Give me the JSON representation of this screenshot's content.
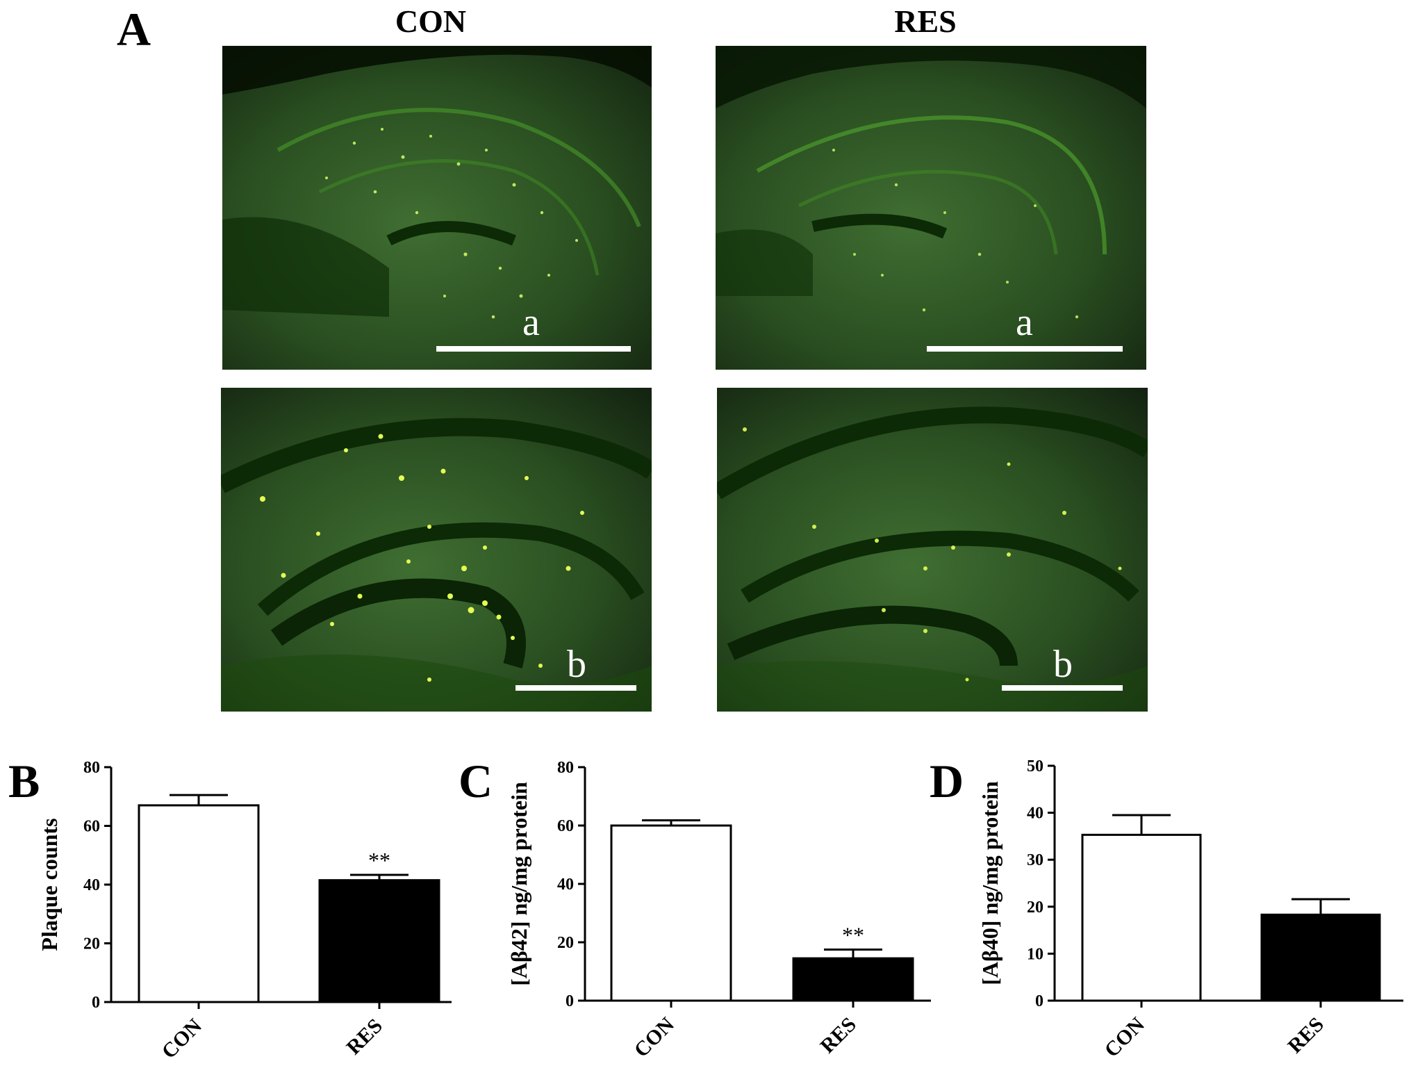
{
  "panel_a": {
    "letter": "A",
    "col_titles": [
      "CON",
      "RES"
    ],
    "images": [
      {
        "group": "CON",
        "label": "a"
      },
      {
        "group": "RES",
        "label": "a"
      },
      {
        "group": "CON",
        "label": "b"
      },
      {
        "group": "RES",
        "label": "b"
      }
    ]
  },
  "chart_data": [
    {
      "panel": "B",
      "type": "bar",
      "categories": [
        "CON",
        "RES"
      ],
      "values": [
        67,
        41.5
      ],
      "errors": [
        3.5,
        1.8
      ],
      "bar_colors": [
        "#ffffff",
        "#000000"
      ],
      "annotations": [
        "",
        "**"
      ],
      "ylabel": "Plaque counts",
      "ylim": [
        0,
        80
      ],
      "yticks": [
        0,
        20,
        40,
        60,
        80
      ]
    },
    {
      "panel": "C",
      "type": "bar",
      "categories": [
        "CON",
        "RES"
      ],
      "values": [
        60,
        14.5
      ],
      "errors": [
        1.8,
        3
      ],
      "bar_colors": [
        "#ffffff",
        "#000000"
      ],
      "annotations": [
        "",
        "**"
      ],
      "ylabel": "[Aβ42] ng/mg protein",
      "ylim": [
        0,
        80
      ],
      "yticks": [
        0,
        20,
        40,
        60,
        80
      ]
    },
    {
      "panel": "D",
      "type": "bar",
      "categories": [
        "CON",
        "RES"
      ],
      "values": [
        35.3,
        18.3
      ],
      "errors": [
        4.2,
        3.3
      ],
      "bar_colors": [
        "#ffffff",
        "#000000"
      ],
      "annotations": [
        "",
        ""
      ],
      "ylabel": "[Aβ40] ng/mg protein",
      "ylim": [
        0,
        50
      ],
      "yticks": [
        0,
        10,
        20,
        30,
        40,
        50
      ]
    }
  ]
}
